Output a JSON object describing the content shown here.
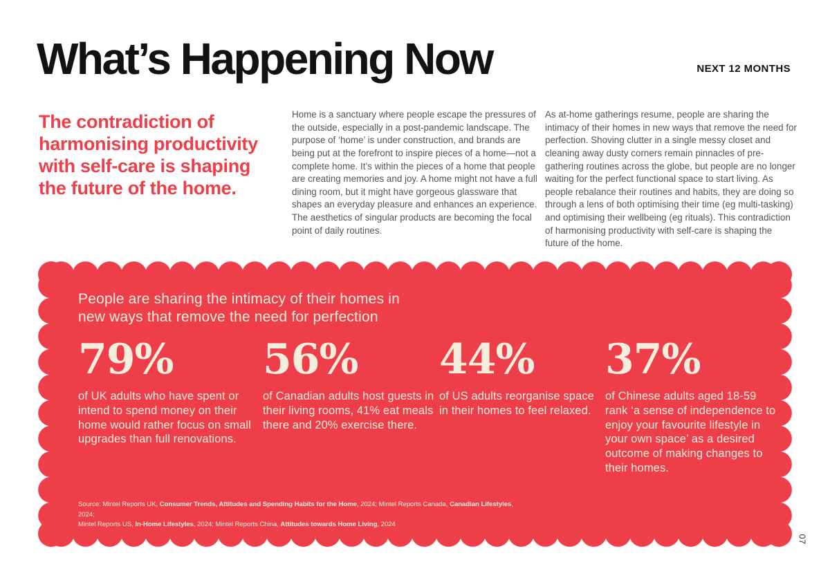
{
  "page": {
    "title": "What’s Happening Now",
    "kicker": "NEXT 12 MONTHS",
    "page_number": "07"
  },
  "intro": {
    "headline": "The contradiction of harmonising productivity with self-care is shaping the future of the home.",
    "paragraph_1": "Home is a sanctuary where people escape the pressures of the outside, especially in a post-pandemic landscape. The purpose of ‘home’ is under construction, and brands are being put at the forefront to inspire pieces of a home—not a complete home. It’s within the pieces of a home that people are creating memories and joy. A home might not have a full dining room, but it might have gorgeous glassware that shapes an everyday pleasure and enhances an experience. The aesthetics of singular products are becoming the focal point of daily routines.",
    "paragraph_2": "As at-home gatherings resume, people are sharing the intimacy of their homes in new ways that remove the need for perfection. Shoving clutter in a single messy closet and cleaning away dusty corners remain pinnacles of pre-gathering routines across the globe, but people are no longer waiting for the perfect functional space to start living. As people rebalance their routines and habits, they are doing so through a lens of both optimising their time (eg multi-tasking) and optimising their wellbeing (eg rituals). This contradiction of harmonising productivity with self-care is shaping the future of the home."
  },
  "stat_panel": {
    "title_line1": "People are sharing the intimacy of their homes in",
    "title_line2": "new ways that remove the need for perfection",
    "stats": [
      {
        "value": "79%",
        "description": "of UK adults who have spent or intend to spend money on their home would rather focus on small upgrades than full renovations."
      },
      {
        "value": "56%",
        "description": "of Canadian adults host guests in their living rooms, 41% eat meals there and 20% exercise there."
      },
      {
        "value": "44%",
        "description": "of US adults reorganise space in their homes to feel relaxed."
      },
      {
        "value": "37%",
        "description": "of Chinese adults aged 18-59 rank ‘a sense of independence to enjoy your favourite lifestyle in your own space’ as a desired outcome of making changes to their homes."
      }
    ],
    "source_lines": [
      [
        {
          "t": "Source: Mintel Reports UK, ",
          "b": false
        },
        {
          "t": "Consumer Trends, Attitudes and Spending Habits for the Home",
          "b": true
        },
        {
          "t": ", 2024; Mintel Reports Canada, ",
          "b": false
        },
        {
          "t": "Canadian Lifestyles",
          "b": true
        },
        {
          "t": ", 2024;",
          "b": false
        }
      ],
      [
        {
          "t": "Mintel Reports US, ",
          "b": false
        },
        {
          "t": "In-Home Lifestyles",
          "b": true
        },
        {
          "t": ", 2024; Mintel Reports China, ",
          "b": false
        },
        {
          "t": "Attitudes towards Home Living",
          "b": true
        },
        {
          "t": ", 2024",
          "b": false
        }
      ]
    ]
  },
  "colors": {
    "accent_red": "#ee3e4a",
    "cream": "#f6eedd",
    "headline_ink": "#121212",
    "body_gray": "#555254"
  }
}
